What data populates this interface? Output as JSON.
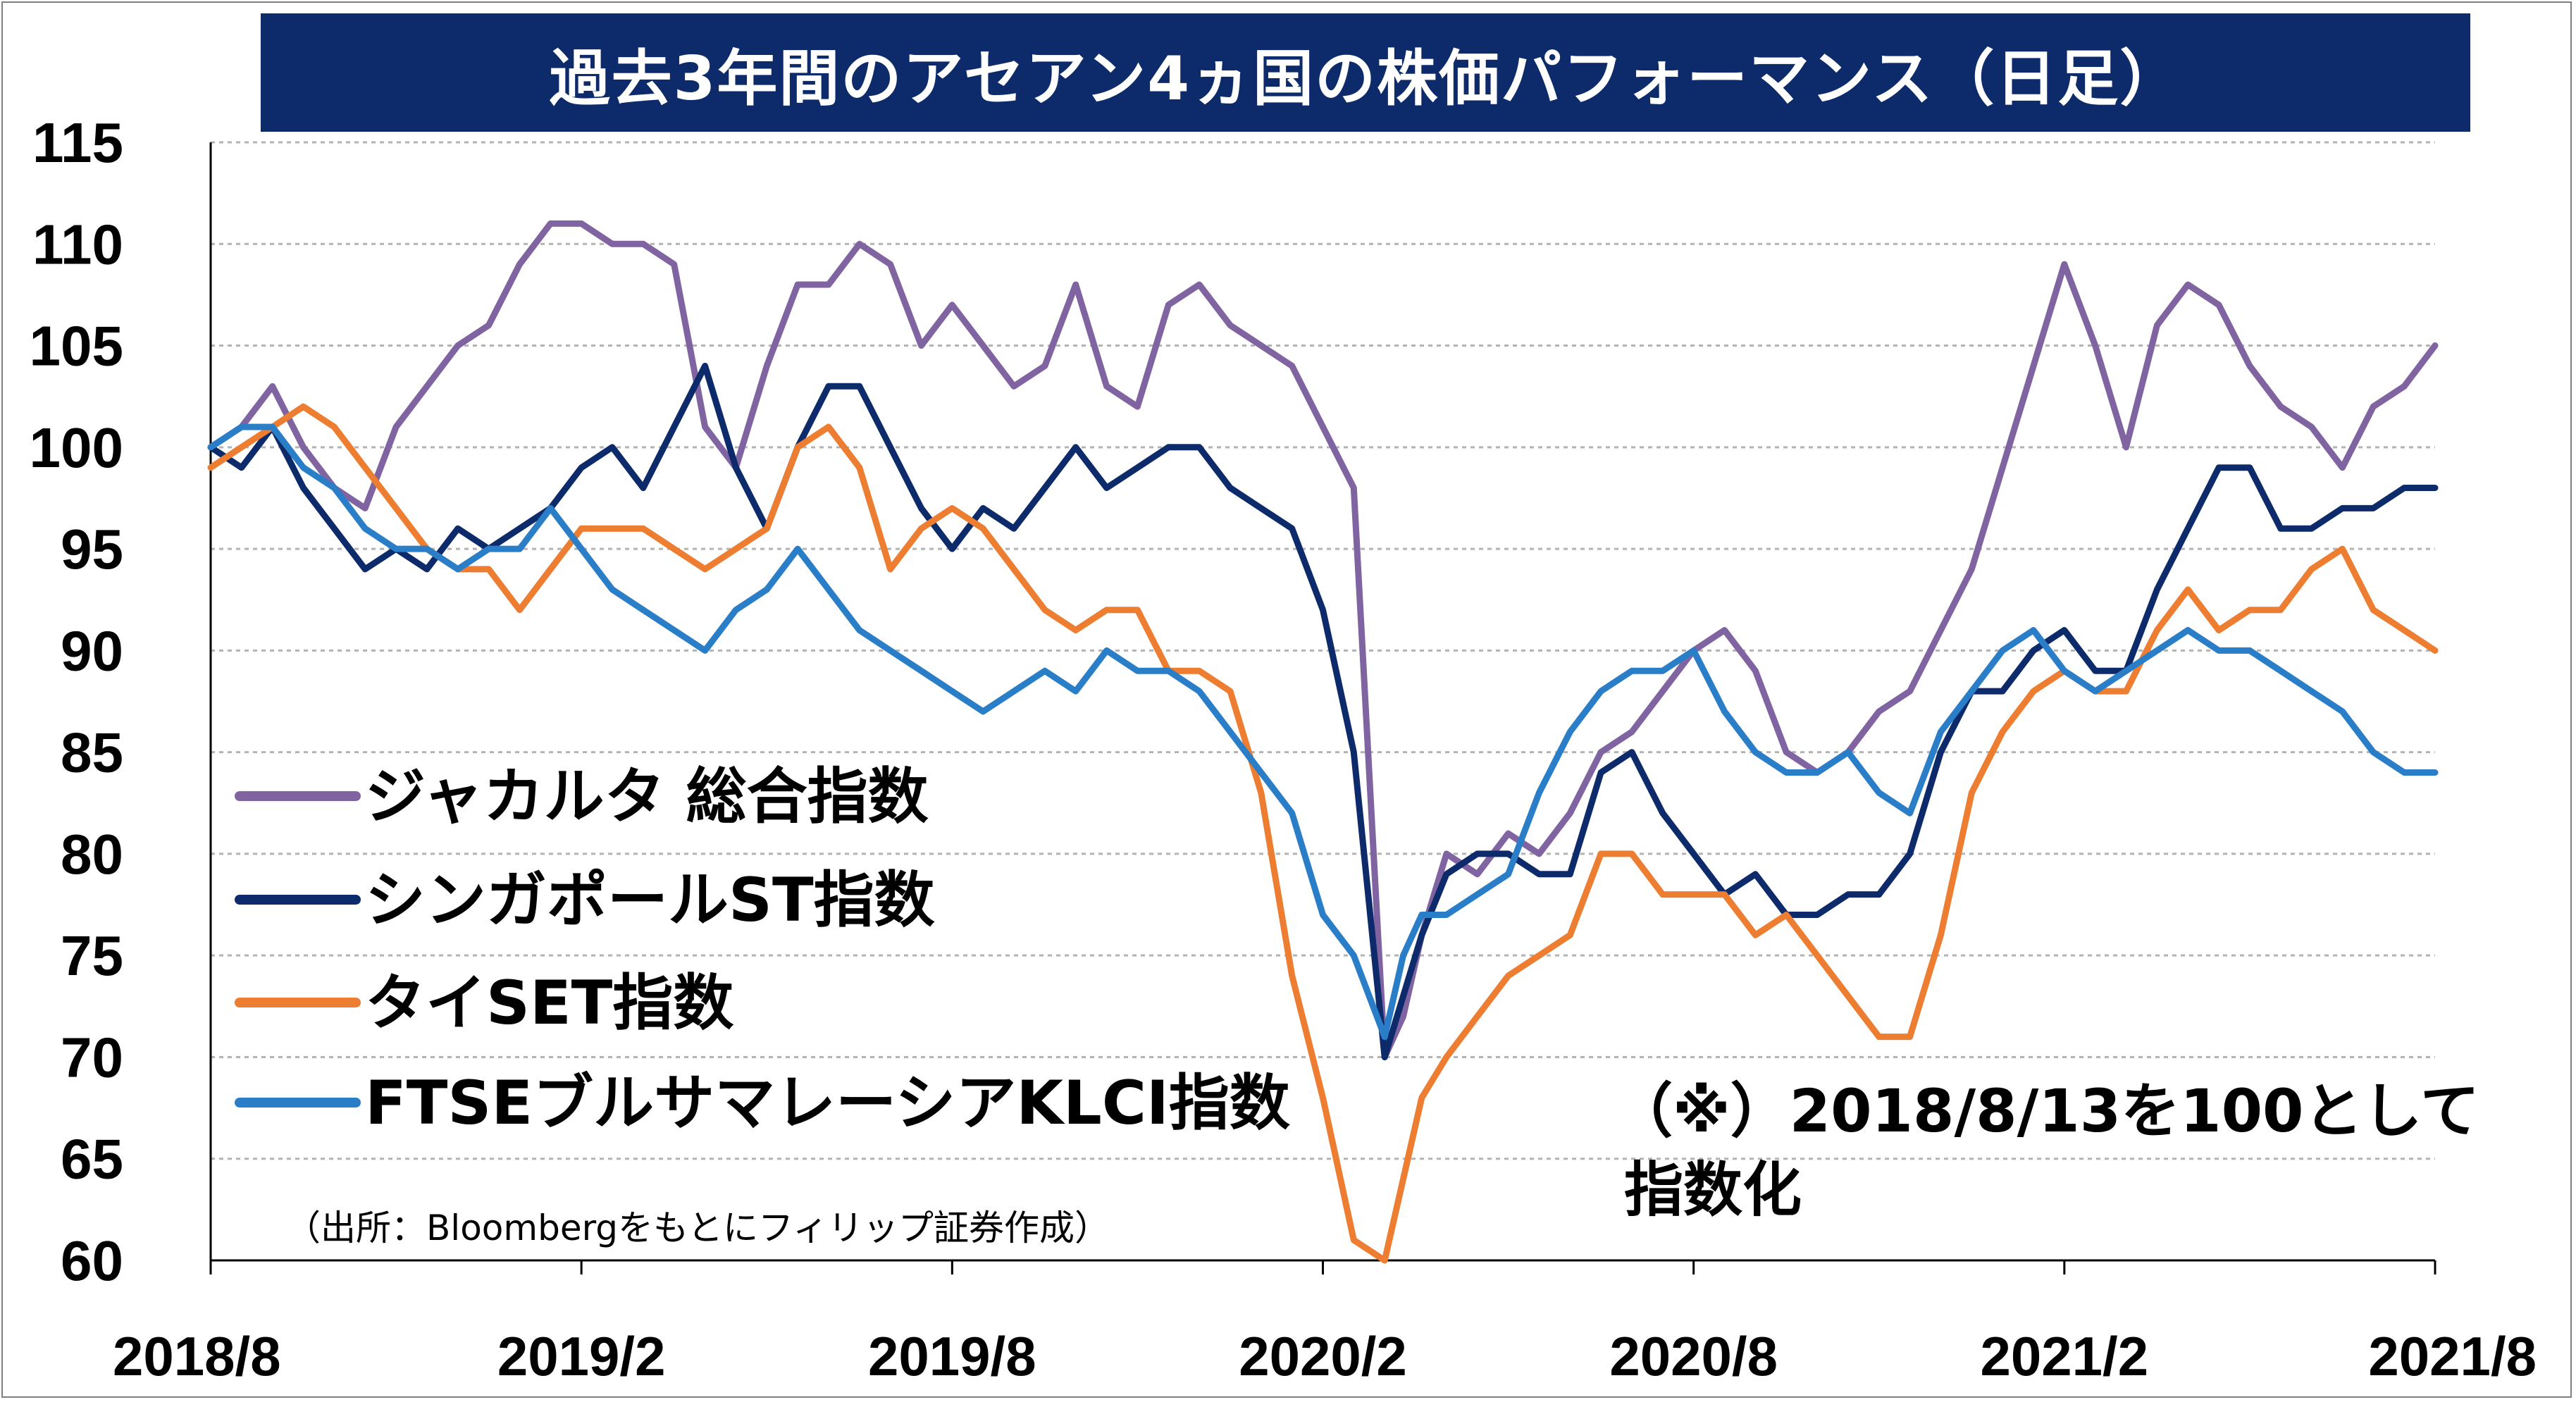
{
  "chart_data": {
    "type": "line",
    "title": "過去3年間のアセアン4ヵ国の株価パフォーマンス（日足）",
    "note_line1": "（※）2018/8/13を100として",
    "note_line2": "指数化",
    "source": "（出所：Bloombergをもとにフィリップ証券作成）",
    "xlabel": "",
    "ylabel": "",
    "ylim": [
      60,
      115
    ],
    "yticks": [
      "115",
      "110",
      "105",
      "100",
      "95",
      "90",
      "85",
      "80",
      "75",
      "70",
      "65",
      "60"
    ],
    "xlim": [
      0,
      36
    ],
    "xticks": [
      {
        "label": "2018/8",
        "pos": 0
      },
      {
        "label": "2019/2",
        "pos": 6
      },
      {
        "label": "2019/8",
        "pos": 12
      },
      {
        "label": "2020/2",
        "pos": 18
      },
      {
        "label": "2020/8",
        "pos": 24
      },
      {
        "label": "2021/2",
        "pos": 30
      },
      {
        "label": "2021/8",
        "pos": 36
      }
    ],
    "grid": true,
    "legend_position": "lower-left",
    "x": [
      0,
      0.5,
      1,
      1.5,
      2,
      2.5,
      3,
      3.5,
      4,
      4.5,
      5,
      5.5,
      6,
      6.5,
      7,
      7.5,
      8,
      8.5,
      9,
      9.5,
      10,
      10.5,
      11,
      11.5,
      12,
      12.5,
      13,
      13.5,
      14,
      14.5,
      15,
      15.5,
      16,
      16.5,
      17,
      17.5,
      18,
      18.5,
      19,
      19.3,
      19.6,
      20,
      20.5,
      21,
      21.5,
      22,
      22.5,
      23,
      23.5,
      24,
      24.5,
      25,
      25.5,
      26,
      26.5,
      27,
      27.5,
      28,
      28.5,
      29,
      29.5,
      30,
      30.5,
      31,
      31.5,
      32,
      32.5,
      33,
      33.5,
      34,
      34.5,
      35,
      35.5,
      36
    ],
    "series": [
      {
        "name": "ジャカルタ 総合指数",
        "color": "#8064a2",
        "values": [
          100,
          101,
          103,
          100,
          98,
          97,
          101,
          103,
          105,
          106,
          109,
          111,
          111,
          110,
          110,
          109,
          101,
          99,
          104,
          108,
          108,
          110,
          109,
          105,
          107,
          105,
          103,
          104,
          108,
          103,
          102,
          107,
          108,
          106,
          105,
          104,
          101,
          98,
          70,
          72,
          76,
          80,
          79,
          81,
          80,
          82,
          85,
          86,
          88,
          90,
          91,
          89,
          85,
          84,
          85,
          87,
          88,
          91,
          94,
          99,
          104,
          109,
          105,
          100,
          106,
          108,
          107,
          104,
          102,
          101,
          99,
          102,
          103,
          105
        ]
      },
      {
        "name": "シンガポールST指数",
        "color": "#0d2a6b",
        "values": [
          100,
          99,
          101,
          98,
          96,
          94,
          95,
          94,
          96,
          95,
          96,
          97,
          99,
          100,
          98,
          101,
          104,
          99,
          96,
          100,
          103,
          103,
          100,
          97,
          95,
          97,
          96,
          98,
          100,
          98,
          99,
          100,
          100,
          98,
          97,
          96,
          92,
          85,
          70,
          73,
          76,
          79,
          80,
          80,
          79,
          79,
          84,
          85,
          82,
          80,
          78,
          79,
          77,
          77,
          78,
          78,
          80,
          85,
          88,
          88,
          90,
          91,
          89,
          89,
          93,
          96,
          99,
          99,
          96,
          96,
          97,
          97,
          98,
          98
        ]
      },
      {
        "name": "タイSET指数",
        "color": "#ed7d31",
        "values": [
          99,
          100,
          101,
          102,
          101,
          99,
          97,
          95,
          94,
          94,
          92,
          94,
          96,
          96,
          96,
          95,
          94,
          95,
          96,
          100,
          101,
          99,
          94,
          96,
          97,
          96,
          94,
          92,
          91,
          92,
          92,
          89,
          89,
          88,
          83,
          74,
          68,
          61,
          60,
          64,
          68,
          70,
          72,
          74,
          75,
          76,
          80,
          80,
          78,
          78,
          78,
          76,
          77,
          75,
          73,
          71,
          71,
          76,
          83,
          86,
          88,
          89,
          88,
          88,
          91,
          93,
          91,
          92,
          92,
          94,
          95,
          92,
          91,
          90
        ]
      },
      {
        "name": "FTSEブルサマレーシアKLCI指数",
        "color": "#2a7ec8",
        "values": [
          100,
          101,
          101,
          99,
          98,
          96,
          95,
          95,
          94,
          95,
          95,
          97,
          95,
          93,
          92,
          91,
          90,
          92,
          93,
          95,
          93,
          91,
          90,
          89,
          88,
          87,
          88,
          89,
          88,
          90,
          89,
          89,
          88,
          86,
          84,
          82,
          77,
          75,
          71,
          75,
          77,
          77,
          78,
          79,
          83,
          86,
          88,
          89,
          89,
          90,
          87,
          85,
          84,
          84,
          85,
          83,
          82,
          86,
          88,
          90,
          91,
          89,
          88,
          89,
          90,
          91,
          90,
          90,
          89,
          88,
          87,
          85,
          84,
          84
        ]
      }
    ]
  }
}
